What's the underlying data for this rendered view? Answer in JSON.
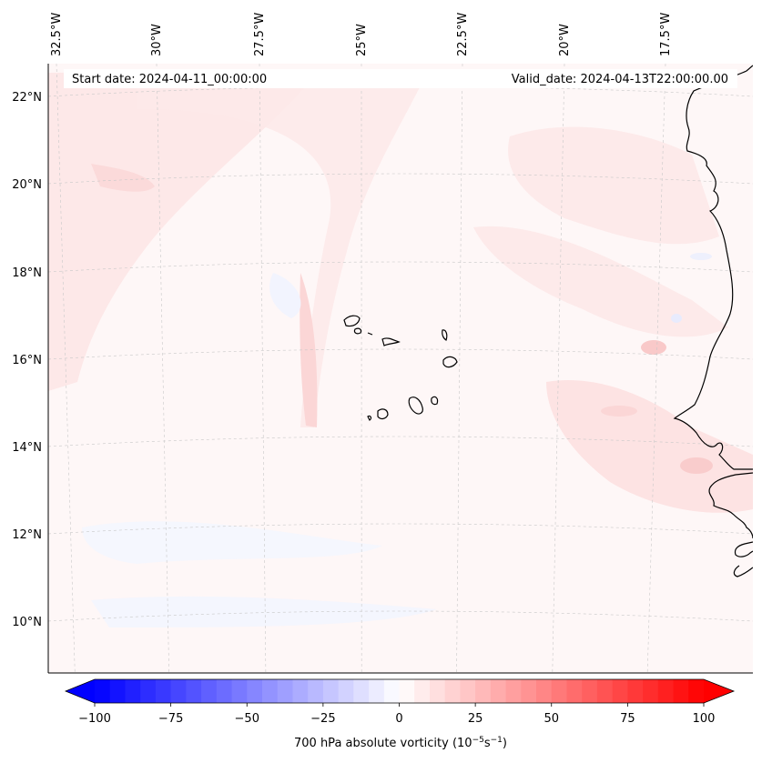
{
  "header": {
    "start_date": "Start date: 2024-04-11_00:00:00",
    "valid_date": "Valid_date: 2024-04-13T22:00:00.00"
  },
  "map": {
    "longitude_labels": [
      "32.5°W",
      "30°W",
      "27.5°W",
      "25°W",
      "22.5°W",
      "20°W",
      "17.5°W"
    ],
    "latitude_labels": [
      "22°N",
      "20°N",
      "18°N",
      "16°N",
      "14°N",
      "12°N",
      "10°N"
    ],
    "field": "700 hPa absolute vorticity",
    "features": [
      "Cape Verde islands",
      "West African coastline (Senegal, Gambia, Guinea-Bissau)"
    ]
  },
  "colorbar": {
    "ticks": [
      "−100",
      "−75",
      "−50",
      "−25",
      "0",
      "25",
      "50",
      "75",
      "100"
    ],
    "min": -100,
    "max": 100,
    "step": 5,
    "label_prefix": "700 hPa absolute vorticity (10",
    "label_exp1": "−5",
    "label_mid": "s",
    "label_exp2": "−1",
    "label_suffix": ")",
    "low_color": "#0000ff",
    "mid_color": "#ffffff",
    "high_color": "#ff0000"
  }
}
